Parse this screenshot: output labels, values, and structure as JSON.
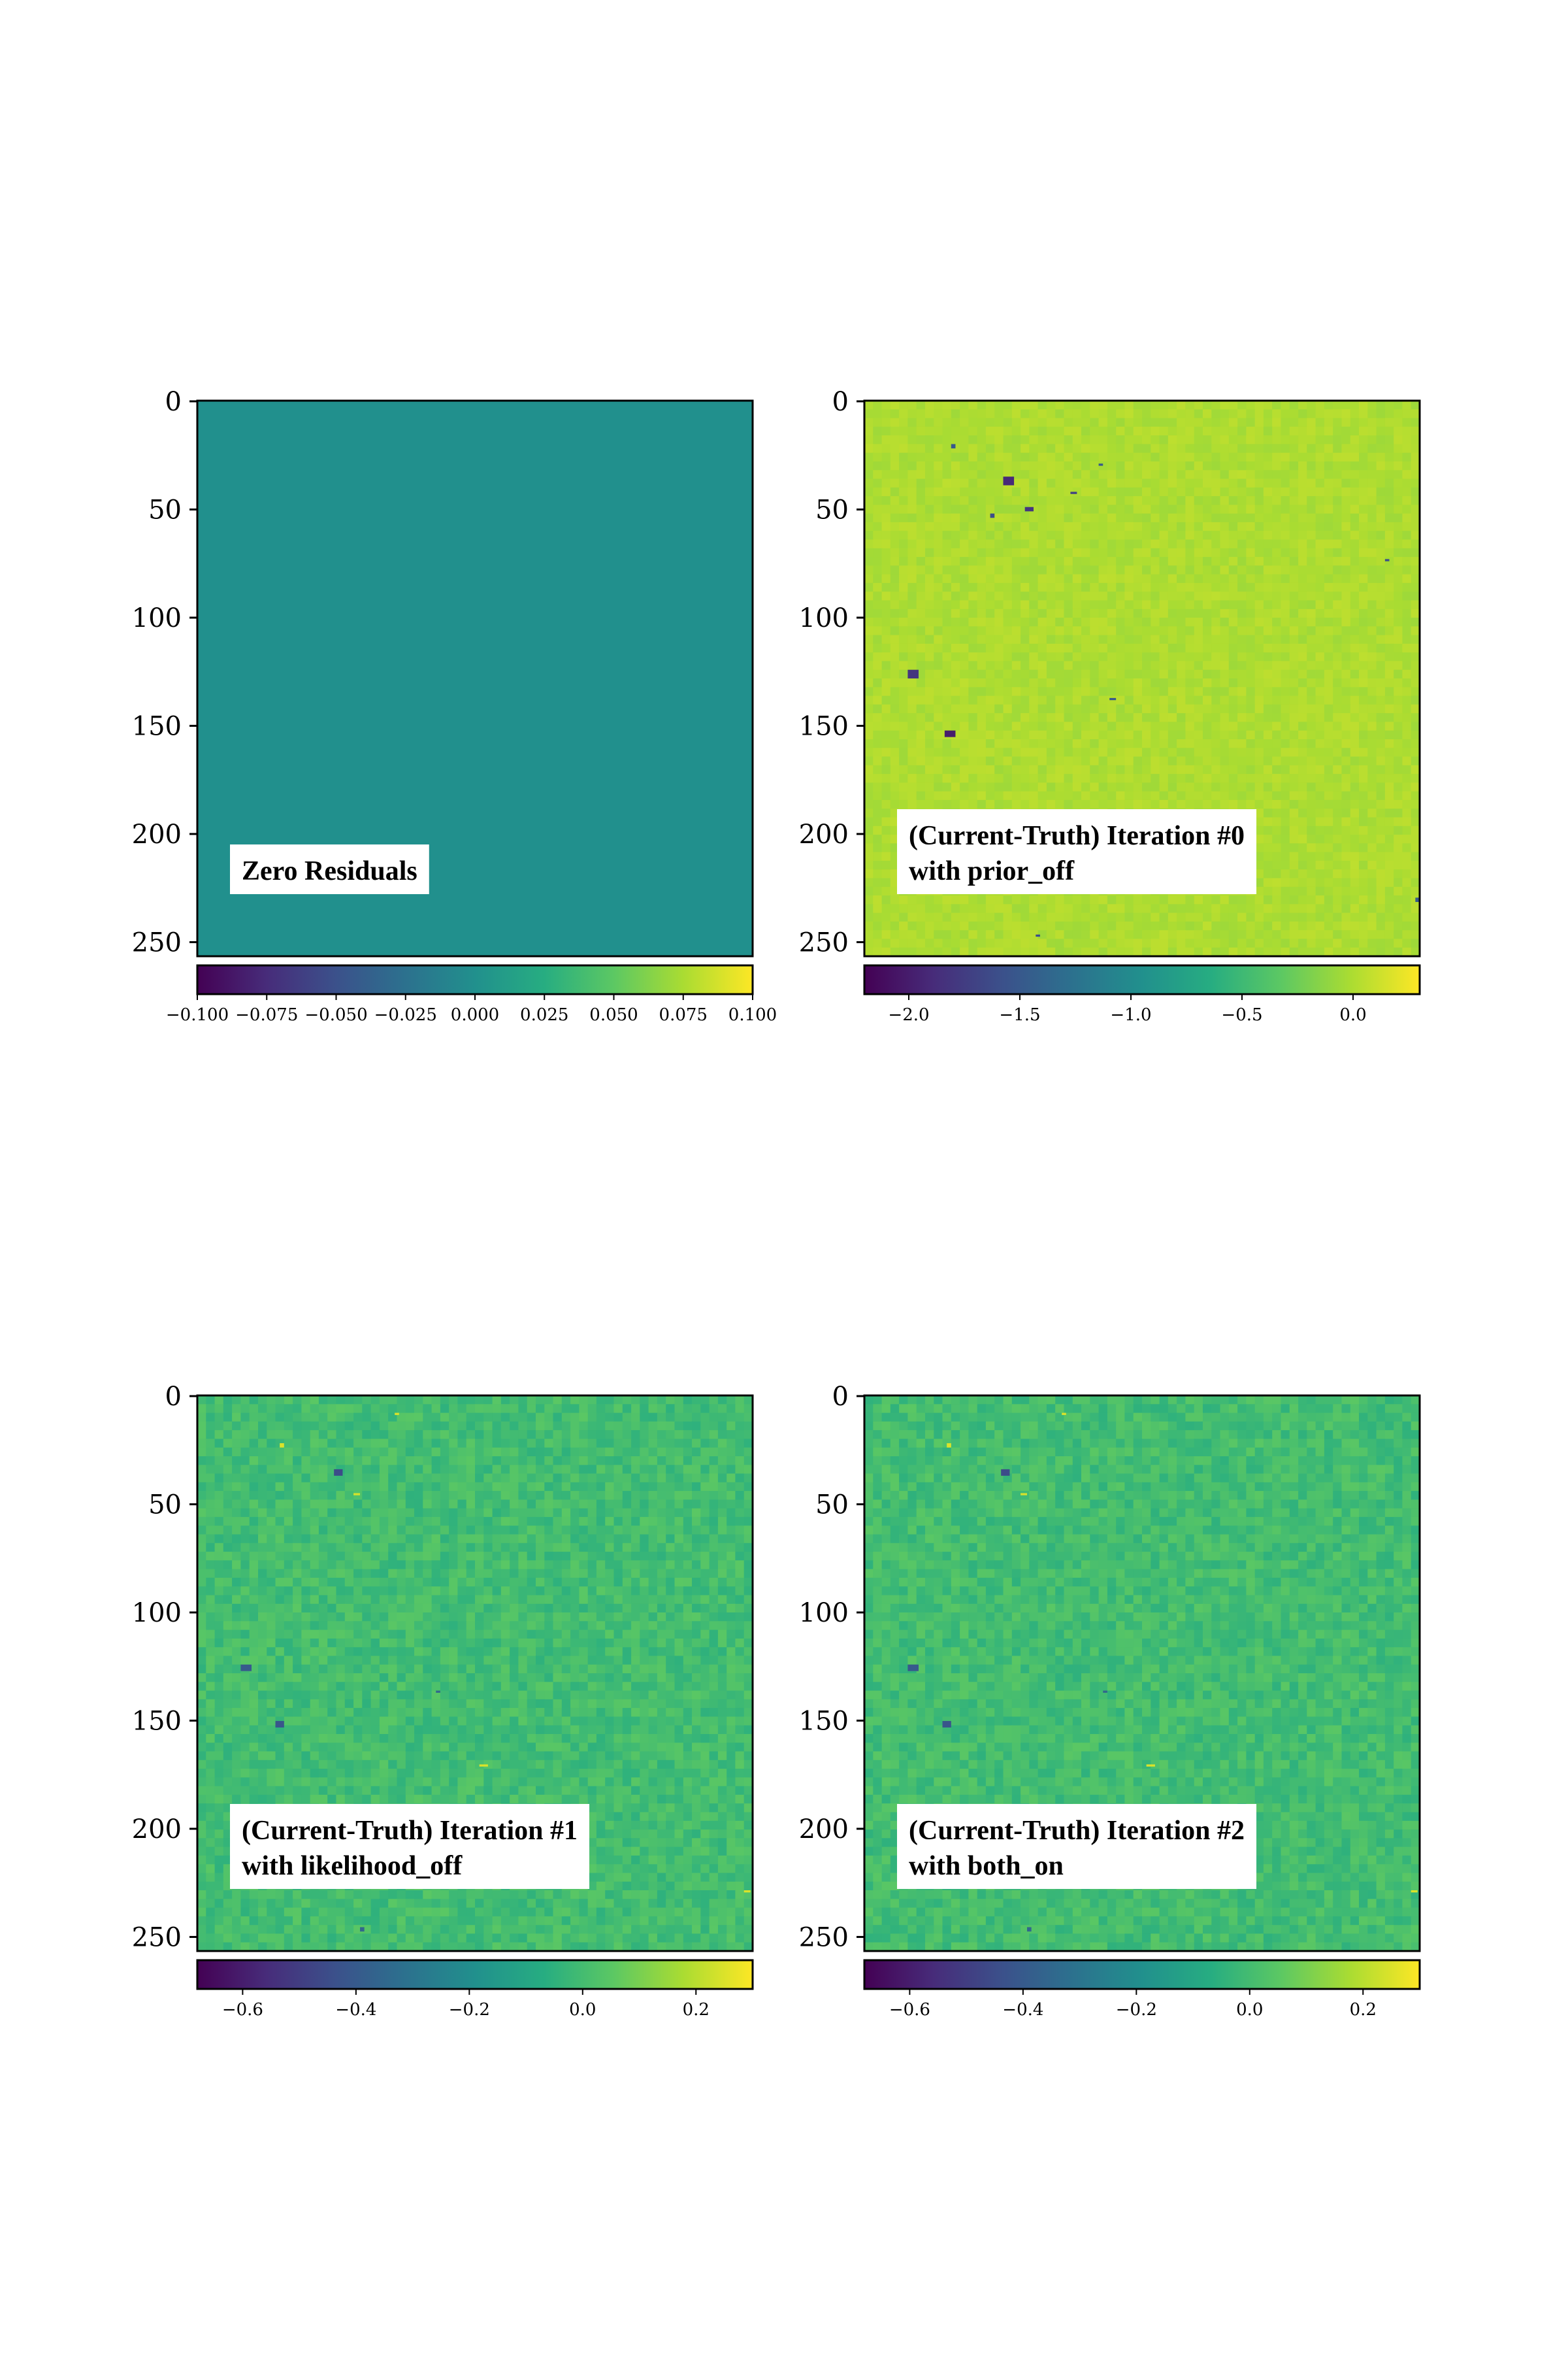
{
  "chart_data": [
    {
      "type": "heatmap",
      "annotation_lines": [
        "Zero Residuals"
      ],
      "y_ticks": [
        0,
        50,
        100,
        150,
        200,
        250
      ],
      "y_range": [
        0,
        255
      ],
      "colorbar": {
        "colormap": "viridis",
        "range": [
          -0.1,
          0.1
        ],
        "ticks": [
          "−0.100",
          "−0.075",
          "−0.050",
          "−0.025",
          "0.000",
          "0.025",
          "0.050",
          "0.075",
          "0.100"
        ],
        "tick_values": [
          -0.1,
          -0.075,
          -0.05,
          -0.025,
          0.0,
          0.025,
          0.05,
          0.075,
          0.1
        ]
      },
      "base_value": 0.0,
      "noise": 0.0,
      "outliers": []
    },
    {
      "type": "heatmap",
      "annotation_lines": [
        "(Current-Truth) Iteration #0",
        "with prior_off"
      ],
      "y_ticks": [
        0,
        50,
        100,
        150,
        200,
        250
      ],
      "y_range": [
        0,
        255
      ],
      "colorbar": {
        "colormap": "viridis",
        "range": [
          -2.2,
          0.3
        ],
        "ticks": [
          "−2.0",
          "−1.5",
          "−1.0",
          "−0.5",
          "0.0"
        ],
        "tick_values": [
          -2.0,
          -1.5,
          -1.0,
          -0.5,
          0.0
        ]
      },
      "base_value": 0.0,
      "noise": 0.06,
      "outliers": [
        {
          "x": 64,
          "y": 35,
          "w": 5,
          "h": 4,
          "value": -1.9
        },
        {
          "x": 40,
          "y": 20,
          "w": 2,
          "h": 2,
          "value": -1.5
        },
        {
          "x": 58,
          "y": 52,
          "w": 2,
          "h": 2,
          "value": -1.6
        },
        {
          "x": 74,
          "y": 49,
          "w": 4,
          "h": 2,
          "value": -1.8
        },
        {
          "x": 95,
          "y": 42,
          "w": 3,
          "h": 1,
          "value": -1.7
        },
        {
          "x": 108,
          "y": 29,
          "w": 2,
          "h": 1,
          "value": -1.5
        },
        {
          "x": 20,
          "y": 124,
          "w": 5,
          "h": 4,
          "value": -1.8
        },
        {
          "x": 37,
          "y": 152,
          "w": 5,
          "h": 3,
          "value": -2.0
        },
        {
          "x": 113,
          "y": 137,
          "w": 3,
          "h": 1,
          "value": -1.5
        },
        {
          "x": 240,
          "y": 73,
          "w": 2,
          "h": 1,
          "value": -1.6
        },
        {
          "x": 254,
          "y": 229,
          "w": 2,
          "h": 2,
          "value": -1.5
        },
        {
          "x": 79,
          "y": 246,
          "w": 2,
          "h": 1,
          "value": -1.6
        }
      ]
    },
    {
      "type": "heatmap",
      "annotation_lines": [
        "(Current-Truth) Iteration #1",
        "with likelihood_off"
      ],
      "y_ticks": [
        0,
        50,
        100,
        150,
        200,
        250
      ],
      "y_range": [
        0,
        255
      ],
      "colorbar": {
        "colormap": "viridis",
        "range": [
          -0.68,
          0.3
        ],
        "ticks": [
          "−0.6",
          "−0.4",
          "−0.2",
          "0.0",
          "0.2"
        ],
        "tick_values": [
          -0.6,
          -0.4,
          -0.2,
          0.0,
          0.2
        ]
      },
      "base_value": 0.0,
      "noise": 0.05,
      "outliers": [
        {
          "x": 63,
          "y": 34,
          "w": 4,
          "h": 3,
          "value": -0.45
        },
        {
          "x": 38,
          "y": 22,
          "w": 2,
          "h": 2,
          "value": 0.25
        },
        {
          "x": 20,
          "y": 124,
          "w": 5,
          "h": 3,
          "value": -0.4
        },
        {
          "x": 36,
          "y": 150,
          "w": 4,
          "h": 3,
          "value": -0.42
        },
        {
          "x": 110,
          "y": 136,
          "w": 2,
          "h": 1,
          "value": -0.35
        },
        {
          "x": 91,
          "y": 8,
          "w": 2,
          "h": 1,
          "value": 0.25
        },
        {
          "x": 72,
          "y": 45,
          "w": 3,
          "h": 1,
          "value": 0.24
        },
        {
          "x": 130,
          "y": 170,
          "w": 4,
          "h": 1,
          "value": 0.25
        },
        {
          "x": 252,
          "y": 228,
          "w": 3,
          "h": 1,
          "value": 0.25
        },
        {
          "x": 75,
          "y": 245,
          "w": 2,
          "h": 2,
          "value": -0.35
        }
      ]
    },
    {
      "type": "heatmap",
      "annotation_lines": [
        "(Current-Truth) Iteration #2",
        "with both_on"
      ],
      "y_ticks": [
        0,
        50,
        100,
        150,
        200,
        250
      ],
      "y_range": [
        0,
        255
      ],
      "colorbar": {
        "colormap": "viridis",
        "range": [
          -0.68,
          0.3
        ],
        "ticks": [
          "−0.6",
          "−0.4",
          "−0.2",
          "0.0",
          "0.2"
        ],
        "tick_values": [
          -0.6,
          -0.4,
          -0.2,
          0.0,
          0.2
        ]
      },
      "base_value": 0.0,
      "noise": 0.05,
      "outliers": [
        {
          "x": 63,
          "y": 34,
          "w": 4,
          "h": 3,
          "value": -0.45
        },
        {
          "x": 38,
          "y": 22,
          "w": 2,
          "h": 2,
          "value": 0.25
        },
        {
          "x": 20,
          "y": 124,
          "w": 5,
          "h": 3,
          "value": -0.4
        },
        {
          "x": 36,
          "y": 150,
          "w": 4,
          "h": 3,
          "value": -0.42
        },
        {
          "x": 110,
          "y": 136,
          "w": 2,
          "h": 1,
          "value": -0.35
        },
        {
          "x": 91,
          "y": 8,
          "w": 2,
          "h": 1,
          "value": 0.25
        },
        {
          "x": 72,
          "y": 45,
          "w": 3,
          "h": 1,
          "value": 0.24
        },
        {
          "x": 130,
          "y": 170,
          "w": 4,
          "h": 1,
          "value": 0.25
        },
        {
          "x": 252,
          "y": 228,
          "w": 3,
          "h": 1,
          "value": 0.25
        },
        {
          "x": 75,
          "y": 245,
          "w": 2,
          "h": 2,
          "value": -0.35
        }
      ]
    }
  ]
}
